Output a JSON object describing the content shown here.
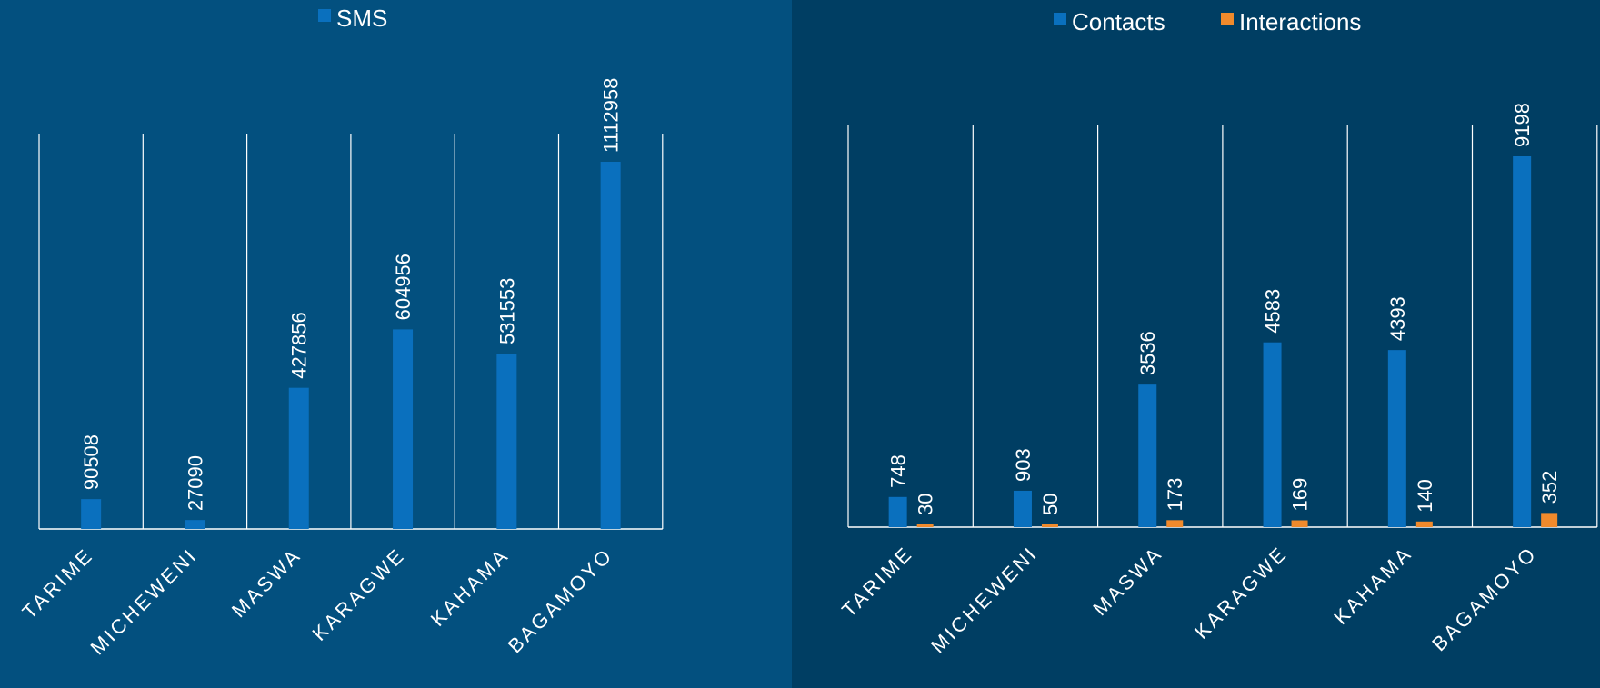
{
  "colors": {
    "left_background": "#03507f",
    "right_background": "#003e63",
    "contacts_series": "#0a70be",
    "interactions_series": "#f08a2c",
    "sms_series": "#0a70be",
    "text": "#ffffff"
  },
  "chart_data": [
    {
      "type": "bar",
      "categories": [
        "TARIME",
        "MICHEWENI",
        "MASWA",
        "KARAGWE",
        "KAHAMA",
        "BAGAMOYO"
      ],
      "series": [
        {
          "name": "SMS",
          "values": [
            90508,
            27090,
            427856,
            604956,
            531553,
            1112958
          ]
        }
      ],
      "legend": {
        "position": "top-center",
        "entries": [
          "SMS"
        ]
      },
      "ylim": [
        0,
        1200000
      ],
      "grid": "vertical-category-separators",
      "data_labels": true
    },
    {
      "type": "bar",
      "categories": [
        "TARIME",
        "MICHEWENI",
        "MASWA",
        "KARAGWE",
        "KAHAMA",
        "BAGAMOYO"
      ],
      "series": [
        {
          "name": "Contacts",
          "values": [
            748,
            903,
            3536,
            4583,
            4393,
            9198
          ]
        },
        {
          "name": "Interactions",
          "values": [
            30,
            50,
            173,
            169,
            140,
            352
          ]
        }
      ],
      "legend": {
        "position": "top-center",
        "entries": [
          "Contacts",
          "Interactions"
        ]
      },
      "ylim": [
        0,
        10000
      ],
      "grid": "vertical-category-separators",
      "data_labels": true
    }
  ]
}
